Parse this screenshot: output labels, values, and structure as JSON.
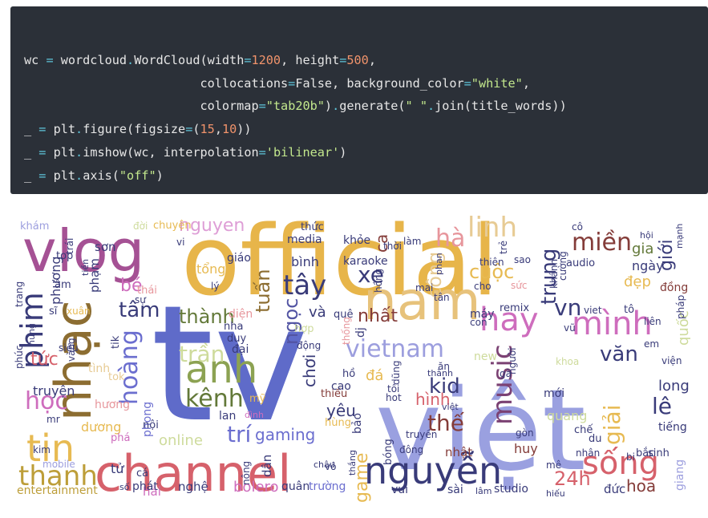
{
  "code": {
    "lines": [
      [
        {
          "t": "wc ",
          "c": "plain"
        },
        {
          "t": "=",
          "c": "op"
        },
        {
          "t": " wordcloud",
          "c": "plain"
        },
        {
          "t": ".",
          "c": "op"
        },
        {
          "t": "WordCloud(width",
          "c": "plain"
        },
        {
          "t": "=",
          "c": "op"
        },
        {
          "t": "1200",
          "c": "num"
        },
        {
          "t": ", height",
          "c": "plain"
        },
        {
          "t": "=",
          "c": "op"
        },
        {
          "t": "500",
          "c": "num"
        },
        {
          "t": ",",
          "c": "plain"
        }
      ],
      [
        {
          "t": "                        collocations",
          "c": "plain"
        },
        {
          "t": "=",
          "c": "op"
        },
        {
          "t": "False, background_color",
          "c": "plain"
        },
        {
          "t": "=",
          "c": "op"
        },
        {
          "t": "\"white\"",
          "c": "str"
        },
        {
          "t": ",",
          "c": "plain"
        }
      ],
      [
        {
          "t": "                        colormap",
          "c": "plain"
        },
        {
          "t": "=",
          "c": "op"
        },
        {
          "t": "\"tab20b\"",
          "c": "str"
        },
        {
          "t": ")",
          "c": "plain"
        },
        {
          "t": ".",
          "c": "op"
        },
        {
          "t": "generate(",
          "c": "plain"
        },
        {
          "t": "\" \"",
          "c": "str"
        },
        {
          "t": ".",
          "c": "op"
        },
        {
          "t": "join(title_words))",
          "c": "plain"
        }
      ],
      [
        {
          "t": "_ ",
          "c": "plain"
        },
        {
          "t": "=",
          "c": "op"
        },
        {
          "t": " plt",
          "c": "plain"
        },
        {
          "t": ".",
          "c": "op"
        },
        {
          "t": "figure(figsize",
          "c": "plain"
        },
        {
          "t": "=",
          "c": "op"
        },
        {
          "t": "(",
          "c": "plain"
        },
        {
          "t": "15",
          "c": "num"
        },
        {
          "t": ",",
          "c": "plain"
        },
        {
          "t": "10",
          "c": "num"
        },
        {
          "t": "))",
          "c": "plain"
        }
      ],
      [
        {
          "t": "_ ",
          "c": "plain"
        },
        {
          "t": "=",
          "c": "op"
        },
        {
          "t": " plt",
          "c": "plain"
        },
        {
          "t": ".",
          "c": "op"
        },
        {
          "t": "imshow(wc, interpolation",
          "c": "plain"
        },
        {
          "t": "=",
          "c": "op"
        },
        {
          "t": "'bilinear'",
          "c": "str"
        },
        {
          "t": ")",
          "c": "plain"
        }
      ],
      [
        {
          "t": "_ ",
          "c": "plain"
        },
        {
          "t": "=",
          "c": "op"
        },
        {
          "t": " plt",
          "c": "plain"
        },
        {
          "t": ".",
          "c": "op"
        },
        {
          "t": "axis(",
          "c": "plain"
        },
        {
          "t": "\"off\"",
          "c": "str"
        },
        {
          "t": ")",
          "c": "plain"
        }
      ]
    ]
  },
  "wordcloud": {
    "words": [
      {
        "text": "tv",
        "color": "#5f6bc9"
      },
      {
        "text": "việt",
        "color": "#9aa0e0"
      },
      {
        "text": "official",
        "color": "#e7b54a"
      },
      {
        "text": "nam",
        "color": "#e7c27b"
      },
      {
        "text": "vlog",
        "color": "#a55194"
      },
      {
        "text": "channel",
        "color": "#d6616b"
      },
      {
        "text": "nhạc",
        "color": "#8c6d31"
      },
      {
        "text": "phim",
        "color": "#393b79"
      },
      {
        "text": "anh",
        "color": "#8ca252"
      },
      {
        "text": "nguyễn",
        "color": "#393b79"
      },
      {
        "text": "tin",
        "color": "#e7ba52"
      },
      {
        "text": "sống",
        "color": "#d6616b"
      },
      {
        "text": "vietnam",
        "color": "#9c9ede"
      },
      {
        "text": "hay",
        "color": "#ce6dbd"
      },
      {
        "text": "mình",
        "color": "#ce6dbd"
      },
      {
        "text": "music",
        "color": "#7b4173"
      },
      {
        "text": "thanh",
        "color": "#bd9e39"
      },
      {
        "text": "hoàng",
        "color": "#6b6ecf"
      },
      {
        "text": "kênh",
        "color": "#637939"
      },
      {
        "text": "tây",
        "color": "#393b79"
      },
      {
        "text": "hà",
        "color": "#e7969c"
      },
      {
        "text": "linh",
        "color": "#e7cb94"
      },
      {
        "text": "miền",
        "color": "#843c39"
      },
      {
        "text": "nguyen",
        "color": "#de9ed6"
      },
      {
        "text": "cuộc",
        "color": "#e7ba52"
      },
      {
        "text": "trung",
        "color": "#393b79"
      },
      {
        "text": "xe",
        "color": "#393b79"
      },
      {
        "text": "học",
        "color": "#ce6dbd"
      },
      {
        "text": "trí",
        "color": "#6b6ecf"
      },
      {
        "text": "thế",
        "color": "#843c39"
      },
      {
        "text": "lê",
        "color": "#393b79"
      },
      {
        "text": "tâm",
        "color": "#393b79"
      },
      {
        "text": "thành",
        "color": "#637939"
      },
      {
        "text": "trần",
        "color": "#cedb9c"
      },
      {
        "text": "24h",
        "color": "#d6616b"
      },
      {
        "text": "vn",
        "color": "#393b79"
      },
      {
        "text": "văn",
        "color": "#393b79"
      },
      {
        "text": "giải",
        "color": "#e7ba52"
      },
      {
        "text": "kid",
        "color": "#393b79"
      },
      {
        "text": "tuấn",
        "color": "#8c6d31"
      },
      {
        "text": "ngọc",
        "color": "#5254a3"
      },
      {
        "text": "gaming",
        "color": "#6b6ecf"
      },
      {
        "text": "hoa",
        "color": "#843c39"
      },
      {
        "text": "game",
        "color": "#e7ba52"
      },
      {
        "text": "hình",
        "color": "#d6616b"
      },
      {
        "text": "yêu",
        "color": "#393b79"
      },
      {
        "text": "online",
        "color": "#cedb9c"
      },
      {
        "text": "tức",
        "color": "#d6616b"
      },
      {
        "text": "bé",
        "color": "#ce6dbd"
      },
      {
        "text": "bolero",
        "color": "#ce6dbd"
      },
      {
        "text": "entertainment",
        "color": "#bd9e39"
      },
      {
        "text": "long",
        "color": "#393b79"
      },
      {
        "text": "quốc",
        "color": "#cedb9c"
      },
      {
        "text": "giới",
        "color": "#393b79"
      },
      {
        "text": "công",
        "color": "#e7cb94"
      },
      {
        "text": "nhất",
        "color": "#843c39"
      },
      {
        "text": "và",
        "color": "#393b79"
      },
      {
        "text": "chơi",
        "color": "#393b79"
      },
      {
        "text": "đẹp",
        "color": "#e7ba52"
      },
      {
        "text": "gia",
        "color": "#637939"
      },
      {
        "text": "phương",
        "color": "#393b79"
      },
      {
        "text": "dương",
        "color": "#e7ba52"
      },
      {
        "text": "truyện",
        "color": "#393b79"
      },
      {
        "text": "hương",
        "color": "#e7969c"
      },
      {
        "text": "phong",
        "color": "#6b6ecf"
      },
      {
        "text": "bình",
        "color": "#393b79"
      },
      {
        "text": "karaoke",
        "color": "#393b79"
      },
      {
        "text": "tổng",
        "color": "#e7ba52"
      },
      {
        "text": "ngày",
        "color": "#393b79"
      },
      {
        "text": "đồng",
        "color": "#843c39"
      },
      {
        "text": "sơn",
        "color": "#393b79"
      },
      {
        "text": "khám",
        "color": "#9c9ede"
      },
      {
        "text": "phạm",
        "color": "#393b79"
      },
      {
        "text": "top",
        "color": "#393b79"
      },
      {
        "text": "giáo",
        "color": "#393b79"
      },
      {
        "text": "media",
        "color": "#393b79"
      },
      {
        "text": "khỏe",
        "color": "#393b79"
      },
      {
        "text": "audio",
        "color": "#393b79"
      },
      {
        "text": "tiếng",
        "color": "#393b79"
      },
      {
        "text": "mới",
        "color": "#393b79"
      },
      {
        "text": "huy",
        "color": "#843c39"
      },
      {
        "text": "nhật",
        "color": "#843c39"
      },
      {
        "text": "đức",
        "color": "#393b79"
      },
      {
        "text": "studio",
        "color": "#393b79"
      },
      {
        "text": "giang",
        "color": "#9c9ede"
      },
      {
        "text": "quang",
        "color": "#cedb9c"
      },
      {
        "text": "nhân",
        "color": "#393b79"
      },
      {
        "text": "bắc",
        "color": "#393b79"
      },
      {
        "text": "sinh",
        "color": "#393b79"
      },
      {
        "text": "remix",
        "color": "#393b79"
      },
      {
        "text": "hải",
        "color": "#ce6dbd"
      },
      {
        "text": "nghệ",
        "color": "#393b79"
      },
      {
        "text": "quân",
        "color": "#393b79"
      },
      {
        "text": "trường",
        "color": "#6b6ecf"
      },
      {
        "text": "cá",
        "color": "#393b79"
      },
      {
        "text": "phát",
        "color": "#393b79"
      },
      {
        "text": "số",
        "color": "#393b79"
      },
      {
        "text": "tử",
        "color": "#393b79"
      },
      {
        "text": "kim",
        "color": "#393b79"
      },
      {
        "text": "mobile",
        "color": "#9c9ede"
      },
      {
        "text": "lan",
        "color": "#393b79"
      },
      {
        "text": "nội",
        "color": "#393b79"
      },
      {
        "text": "phá",
        "color": "#ce6dbd"
      },
      {
        "text": "hùng",
        "color": "#e7ba52"
      },
      {
        "text": "thiếu",
        "color": "#843c39"
      },
      {
        "text": "tình",
        "color": "#e7cb94"
      },
      {
        "text": "tok",
        "color": "#e7cb94"
      },
      {
        "text": "tik",
        "color": "#393b79"
      },
      {
        "text": "siêu",
        "color": "#393b79"
      },
      {
        "text": "việt",
        "color": "#393b79"
      },
      {
        "text": "tô",
        "color": "#393b79"
      },
      {
        "text": "máy",
        "color": "#393b79"
      },
      {
        "text": "sĩ",
        "color": "#393b79"
      },
      {
        "text": "xuân",
        "color": "#e7ba52"
      },
      {
        "text": "âm",
        "color": "#393b79"
      },
      {
        "text": "thái",
        "color": "#e7969c"
      },
      {
        "text": "đời",
        "color": "#cedb9c"
      },
      {
        "text": "chuyện",
        "color": "#e7ba52"
      },
      {
        "text": "thức",
        "color": "#393b79"
      },
      {
        "text": "ca",
        "color": "#843c39"
      },
      {
        "text": "làm",
        "color": "#393b79"
      },
      {
        "text": "cô",
        "color": "#393b79"
      },
      {
        "text": "hội",
        "color": "#393b79"
      },
      {
        "text": "mạnh",
        "color": "#393b79"
      },
      {
        "text": "thiên",
        "color": "#393b79"
      },
      {
        "text": "sao",
        "color": "#393b79"
      },
      {
        "text": "trẻ",
        "color": "#393b79"
      },
      {
        "text": "khánh",
        "color": "#393b79"
      },
      {
        "text": "cường",
        "color": "#393b79"
      },
      {
        "text": "mai",
        "color": "#393b79"
      },
      {
        "text": "cho",
        "color": "#393b79"
      },
      {
        "text": "sức",
        "color": "#e7969c"
      },
      {
        "text": "tân",
        "color": "#393b79"
      },
      {
        "text": "con",
        "color": "#393b79"
      },
      {
        "text": "diện",
        "color": "#e7969c"
      },
      {
        "text": "nha",
        "color": "#393b79"
      },
      {
        "text": "duy",
        "color": "#393b79"
      },
      {
        "text": "quê",
        "color": "#393b79"
      },
      {
        "text": "hợp",
        "color": "#cedb9c"
      },
      {
        "text": "đại",
        "color": "#393b79"
      },
      {
        "text": "mỹ",
        "color": "#e7ba52"
      },
      {
        "text": "động",
        "color": "#393b79"
      },
      {
        "text": "dj",
        "color": "#393b79"
      },
      {
        "text": "thống",
        "color": "#e7969c"
      },
      {
        "text": "new",
        "color": "#cedb9c"
      },
      {
        "text": "ăn",
        "color": "#393b79"
      },
      {
        "text": "đá",
        "color": "#e7ba52"
      },
      {
        "text": "hồ",
        "color": "#393b79"
      },
      {
        "text": "tôi",
        "color": "#393b79"
      },
      {
        "text": "hot",
        "color": "#393b79"
      },
      {
        "text": "đình",
        "color": "#ce6dbd"
      },
      {
        "text": "bảo",
        "color": "#393b79"
      },
      {
        "text": "dũng",
        "color": "#393b79"
      },
      {
        "text": "người",
        "color": "#393b79"
      },
      {
        "text": "khoa",
        "color": "#cedb9c"
      },
      {
        "text": "viện",
        "color": "#393b79"
      },
      {
        "text": "thành",
        "color": "#393b79"
      },
      {
        "text": "gà",
        "color": "#393b79"
      },
      {
        "text": "em",
        "color": "#393b79"
      },
      {
        "text": "liên",
        "color": "#393b79"
      },
      {
        "text": "pháp",
        "color": "#393b79"
      },
      {
        "text": "gòn",
        "color": "#393b79"
      },
      {
        "text": "chế",
        "color": "#393b79"
      },
      {
        "text": "du",
        "color": "#393b79"
      },
      {
        "text": "mê",
        "color": "#393b79"
      },
      {
        "text": "bi",
        "color": "#393b79"
      },
      {
        "text": "cao",
        "color": "#393b79"
      },
      {
        "text": "vui",
        "color": "#393b79"
      },
      {
        "text": "sài",
        "color": "#393b79"
      },
      {
        "text": "lâm",
        "color": "#393b79"
      },
      {
        "text": "hiếu",
        "color": "#393b79"
      },
      {
        "text": "thắng",
        "color": "#393b79"
      },
      {
        "text": "bóng",
        "color": "#393b79"
      },
      {
        "text": "đông",
        "color": "#393b79"
      },
      {
        "text": "truyền",
        "color": "#393b79"
      },
      {
        "text": "dân",
        "color": "#393b79"
      },
      {
        "text": "nông",
        "color": "#393b79"
      },
      {
        "text": "châu",
        "color": "#393b79"
      },
      {
        "text": "vô",
        "color": "#393b79"
      },
      {
        "text": "mr",
        "color": "#393b79"
      },
      {
        "text": "trang",
        "color": "#393b79"
      },
      {
        "text": "phúc",
        "color": "#393b79"
      },
      {
        "text": "hưng",
        "color": "#393b79"
      },
      {
        "text": "vàng",
        "color": "#393b79"
      },
      {
        "text": "vũ",
        "color": "#393b79"
      },
      {
        "text": "trái",
        "color": "#393b79"
      },
      {
        "text": "lý",
        "color": "#393b79"
      },
      {
        "text": "vi",
        "color": "#393b79"
      },
      {
        "text": "thời",
        "color": "#393b79"
      },
      {
        "text": "phan",
        "color": "#393b79"
      },
      {
        "text": "tiền",
        "color": "#393b79"
      },
      {
        "text": "sự",
        "color": "#393b79"
      },
      {
        "text": "hồng",
        "color": "#393b79"
      },
      {
        "text": "viet",
        "color": "#393b79"
      }
    ]
  }
}
